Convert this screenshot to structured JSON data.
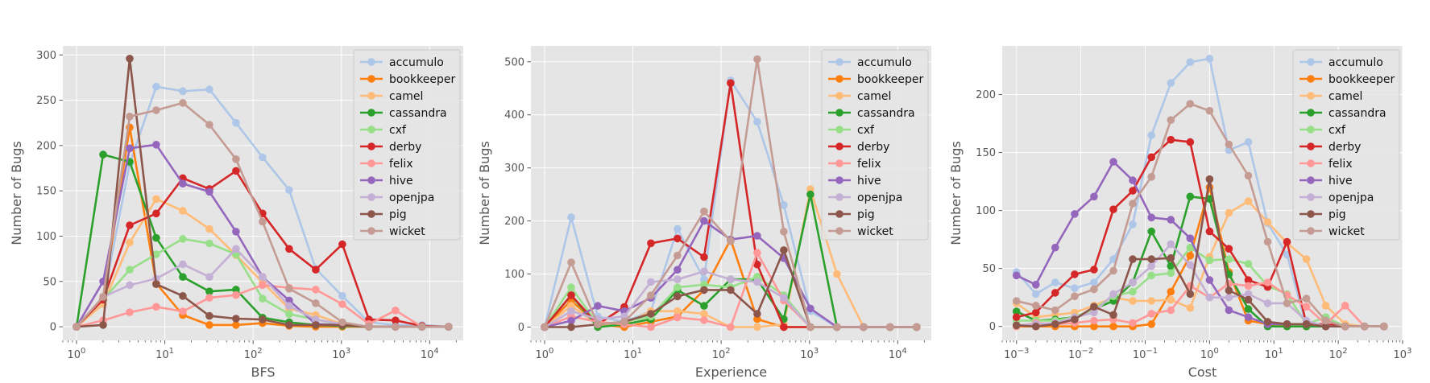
{
  "colors": {
    "accumulo": "#aec7e8",
    "bookkeeper": "#ff7f0e",
    "camel": "#ffbb78",
    "cassandra": "#2ca02c",
    "cxf": "#98df8a",
    "derby": "#d62728",
    "felix": "#ff9896",
    "hive": "#9467bd",
    "openjpa": "#c5b0d5",
    "pig": "#8c564b",
    "wicket": "#c49c94"
  },
  "chart_data": [
    {
      "type": "line",
      "xscale": "log",
      "xlabel": "BFS",
      "ylabel": "Number of Bugs",
      "xlim": [
        0.7,
        24000
      ],
      "ylim": [
        -15,
        310
      ],
      "xticks": [
        {
          "v": 1,
          "exp": "0"
        },
        {
          "v": 10,
          "exp": "1"
        },
        {
          "v": 100,
          "exp": "2"
        },
        {
          "v": 1000,
          "exp": "3"
        },
        {
          "v": 10000,
          "exp": "4"
        }
      ],
      "yticks": [
        0,
        50,
        100,
        150,
        200,
        250,
        300
      ],
      "grid": true,
      "legend": "top-right",
      "x": [
        1,
        2,
        4,
        8,
        16,
        32,
        64,
        128,
        256,
        512,
        1024,
        2048,
        4096,
        8192,
        16384
      ],
      "series": [
        {
          "name": "accumulo",
          "values": [
            0,
            30,
            180,
            265,
            260,
            262,
            225,
            187,
            151,
            64,
            34,
            5,
            2,
            2,
            0
          ]
        },
        {
          "name": "bookkeeper",
          "values": [
            0,
            30,
            220,
            48,
            13,
            2,
            2,
            4,
            1,
            0,
            0,
            0,
            0,
            0,
            0
          ]
        },
        {
          "name": "camel",
          "values": [
            0,
            25,
            93,
            141,
            128,
            108,
            79,
            49,
            20,
            13,
            3,
            0,
            0,
            0,
            0
          ]
        },
        {
          "name": "cassandra",
          "values": [
            0,
            190,
            182,
            98,
            55,
            39,
            41,
            10,
            5,
            2,
            1,
            0,
            0,
            0,
            0
          ]
        },
        {
          "name": "cxf",
          "values": [
            0,
            30,
            63,
            80,
            97,
            92,
            80,
            31,
            14,
            8,
            2,
            0,
            0,
            0,
            0
          ]
        },
        {
          "name": "derby",
          "values": [
            0,
            30,
            112,
            125,
            164,
            152,
            172,
            125,
            86,
            63,
            91,
            8,
            7,
            1,
            0
          ]
        },
        {
          "name": "felix",
          "values": [
            0,
            7,
            16,
            22,
            17,
            32,
            35,
            46,
            43,
            41,
            25,
            3,
            18,
            0,
            0
          ]
        },
        {
          "name": "hive",
          "values": [
            0,
            50,
            197,
            201,
            158,
            149,
            105,
            55,
            29,
            3,
            2,
            0,
            0,
            0,
            0
          ]
        },
        {
          "name": "openjpa",
          "values": [
            0,
            33,
            46,
            53,
            69,
            55,
            86,
            55,
            23,
            8,
            3,
            0,
            0,
            0,
            0
          ]
        },
        {
          "name": "pig",
          "values": [
            0,
            2,
            296,
            47,
            34,
            12,
            9,
            8,
            2,
            2,
            2,
            0,
            0,
            0,
            0
          ]
        },
        {
          "name": "wicket",
          "values": [
            0,
            33,
            232,
            239,
            247,
            223,
            185,
            116,
            42,
            26,
            5,
            0,
            0,
            0,
            0
          ]
        }
      ]
    },
    {
      "type": "line",
      "xscale": "log",
      "xlabel": "Experience",
      "ylabel": "Number of Bugs",
      "xlim": [
        0.7,
        24000
      ],
      "ylim": [
        -25,
        530
      ],
      "xticks": [
        {
          "v": 1,
          "exp": "0"
        },
        {
          "v": 10,
          "exp": "1"
        },
        {
          "v": 100,
          "exp": "2"
        },
        {
          "v": 1000,
          "exp": "3"
        },
        {
          "v": 10000,
          "exp": "4"
        }
      ],
      "yticks": [
        0,
        100,
        200,
        300,
        400,
        500
      ],
      "grid": true,
      "legend": "top-right",
      "x": [
        1,
        2,
        4,
        8,
        16,
        32,
        64,
        128,
        256,
        512,
        1024,
        2048,
        4096,
        8192,
        16384
      ],
      "series": [
        {
          "name": "accumulo",
          "values": [
            0,
            207,
            20,
            10,
            30,
            185,
            90,
            465,
            387,
            230,
            30,
            0,
            0,
            0,
            0
          ]
        },
        {
          "name": "bookkeeper",
          "values": [
            0,
            50,
            5,
            0,
            10,
            20,
            70,
            165,
            15,
            0,
            0,
            0,
            0,
            0,
            0
          ]
        },
        {
          "name": "camel",
          "values": [
            0,
            40,
            5,
            5,
            30,
            30,
            25,
            0,
            0,
            5,
            260,
            100,
            0,
            0,
            0
          ]
        },
        {
          "name": "cassandra",
          "values": [
            0,
            60,
            0,
            5,
            15,
            70,
            40,
            90,
            90,
            15,
            250,
            0,
            0,
            0,
            0
          ]
        },
        {
          "name": "cxf",
          "values": [
            0,
            75,
            5,
            10,
            20,
            75,
            80,
            75,
            95,
            60,
            0,
            0,
            0,
            0,
            0
          ]
        },
        {
          "name": "derby",
          "values": [
            0,
            60,
            5,
            38,
            158,
            167,
            132,
            460,
            118,
            0,
            0,
            0,
            0,
            0,
            0
          ]
        },
        {
          "name": "felix",
          "values": [
            0,
            20,
            10,
            5,
            0,
            18,
            13,
            0,
            140,
            50,
            0,
            0,
            0,
            0,
            0
          ]
        },
        {
          "name": "hive",
          "values": [
            0,
            12,
            40,
            30,
            55,
            108,
            200,
            165,
            172,
            130,
            35,
            0,
            0,
            0,
            0
          ]
        },
        {
          "name": "openjpa",
          "values": [
            0,
            30,
            15,
            20,
            85,
            90,
            105,
            90,
            85,
            55,
            0,
            0,
            0,
            0,
            0
          ]
        },
        {
          "name": "pig",
          "values": [
            0,
            0,
            5,
            10,
            25,
            58,
            70,
            70,
            25,
            145,
            0,
            0,
            0,
            0,
            0
          ]
        },
        {
          "name": "wicket",
          "values": [
            0,
            122,
            5,
            10,
            60,
            135,
            218,
            162,
            505,
            180,
            0,
            0,
            0,
            0,
            0
          ]
        }
      ]
    },
    {
      "type": "line",
      "xscale": "log",
      "xlabel": "Cost",
      "ylabel": "Number of Bugs",
      "xlim": [
        0.0006,
        1000
      ],
      "ylim": [
        -12,
        242
      ],
      "xticks": [
        {
          "v": 0.001,
          "exp": "−3"
        },
        {
          "v": 0.01,
          "exp": "−2"
        },
        {
          "v": 0.1,
          "exp": "−1"
        },
        {
          "v": 1,
          "exp": "0"
        },
        {
          "v": 10,
          "exp": "1"
        },
        {
          "v": 100,
          "exp": "2"
        },
        {
          "v": 1000,
          "exp": "3"
        }
      ],
      "yticks": [
        0,
        50,
        100,
        150,
        200
      ],
      "grid": true,
      "legend": "top-right",
      "x": [
        0.001,
        0.002,
        0.004,
        0.008,
        0.016,
        0.032,
        0.064,
        0.125,
        0.25,
        0.5,
        1,
        2,
        4,
        8,
        16,
        32,
        64,
        128,
        256,
        512
      ],
      "series": [
        {
          "name": "accumulo",
          "values": [
            47,
            28,
            38,
            33,
            38,
            58,
            88,
            165,
            210,
            228,
            231,
            152,
            159,
            89,
            62,
            0,
            0,
            0,
            0,
            0
          ]
        },
        {
          "name": "bookkeeper",
          "values": [
            0,
            0,
            0,
            0,
            0,
            0,
            0,
            2,
            30,
            61,
            120,
            47,
            5,
            2,
            0,
            0,
            0,
            0,
            0,
            0
          ]
        },
        {
          "name": "camel",
          "values": [
            20,
            8,
            10,
            12,
            18,
            25,
            22,
            22,
            23,
            16,
            60,
            98,
            108,
            90,
            72,
            58,
            18,
            2,
            0,
            0
          ]
        },
        {
          "name": "cassandra",
          "values": [
            13,
            5,
            6,
            8,
            15,
            22,
            38,
            82,
            52,
            112,
            110,
            45,
            15,
            0,
            0,
            0,
            0,
            0,
            0,
            0
          ]
        },
        {
          "name": "cxf",
          "values": [
            5,
            5,
            5,
            8,
            15,
            26,
            30,
            44,
            46,
            68,
            57,
            58,
            54,
            35,
            28,
            2,
            8,
            0,
            0,
            0
          ]
        },
        {
          "name": "derby",
          "values": [
            8,
            12,
            29,
            45,
            49,
            101,
            117,
            146,
            161,
            159,
            82,
            67,
            40,
            34,
            73,
            2,
            2,
            0,
            0,
            0
          ]
        },
        {
          "name": "felix",
          "values": [
            0,
            3,
            2,
            3,
            5,
            6,
            3,
            11,
            14,
            35,
            25,
            37,
            35,
            38,
            27,
            17,
            2,
            18,
            0,
            0
          ]
        },
        {
          "name": "hive",
          "values": [
            44,
            36,
            68,
            97,
            112,
            142,
            126,
            94,
            92,
            76,
            40,
            14,
            8,
            2,
            2,
            2,
            0,
            0,
            0,
            0
          ]
        },
        {
          "name": "openjpa",
          "values": [
            1,
            2,
            3,
            8,
            12,
            28,
            38,
            52,
            71,
            53,
            25,
            25,
            28,
            20,
            20,
            5,
            0,
            0,
            0,
            0
          ]
        },
        {
          "name": "pig",
          "values": [
            1,
            0,
            2,
            6,
            17,
            10,
            58,
            58,
            59,
            28,
            127,
            31,
            23,
            4,
            2,
            2,
            0,
            0,
            0,
            0
          ]
        },
        {
          "name": "wicket",
          "values": [
            22,
            18,
            14,
            26,
            32,
            48,
            106,
            129,
            178,
            192,
            186,
            157,
            130,
            73,
            20,
            24,
            5,
            0,
            0,
            0
          ]
        }
      ]
    }
  ]
}
